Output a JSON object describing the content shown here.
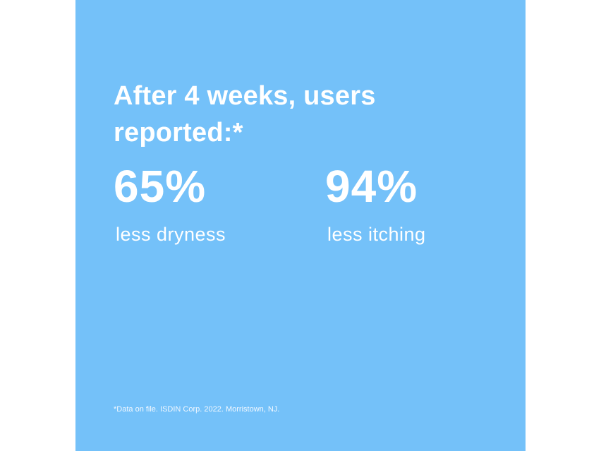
{
  "colors": {
    "panel_background": "#74c1f9",
    "text": "#ffffff"
  },
  "headline": "After 4 weeks, users reported:*",
  "stats": [
    {
      "value": "65%",
      "label": "less dryness"
    },
    {
      "value": "94%",
      "label": "less itching"
    }
  ],
  "footnote": "*Data on file. ISDIN Corp. 2022. Morristown, NJ."
}
